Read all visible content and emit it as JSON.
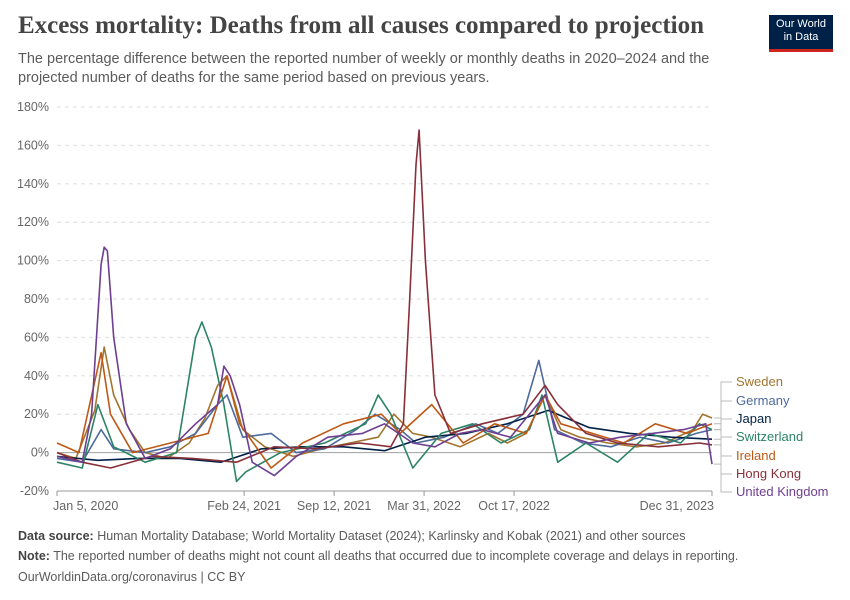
{
  "header": {
    "title": "Excess mortality: Deaths from all causes compared to projection",
    "subtitle": "The percentage difference between the reported number of weekly or monthly deaths in 2020–2024 and the projected number of deaths for the same period based on previous years.",
    "logo_line1": "Our World",
    "logo_line2": "in Data"
  },
  "footer": {
    "source_label": "Data source:",
    "source_text": " Human Mortality Database; World Mortality Dataset (2024); Karlinsky and Kobak (2021) and other sources",
    "note_label": "Note:",
    "note_text": " The reported number of deaths might not count all deaths that occurred due to incomplete coverage and delays in reporting.",
    "credit": "OurWorldinData.org/coronavirus | CC BY"
  },
  "chart_data": {
    "type": "line",
    "title": "Excess mortality: Deaths from all causes compared to projection",
    "x_type": "date",
    "xlim": [
      "2020-01-05",
      "2023-12-31"
    ],
    "x_ticks": [
      "2020-01-05",
      "2021-02-24",
      "2021-09-12",
      "2022-03-31",
      "2022-10-17",
      "2023-12-31"
    ],
    "x_tick_labels": [
      "Jan 5, 2020",
      "Feb 24, 2021",
      "Sep 12, 2021",
      "Mar 31, 2022",
      "Oct 17, 2022",
      "Dec 31, 2023"
    ],
    "ylim": [
      -20,
      180
    ],
    "y_ticks": [
      -20,
      0,
      20,
      40,
      60,
      80,
      100,
      120,
      140,
      160,
      180
    ],
    "y_tick_labels": [
      "-20%",
      "0%",
      "20%",
      "40%",
      "60%",
      "80%",
      "100%",
      "120%",
      "140%",
      "160%",
      "180%"
    ],
    "grid": "horizontal dashed",
    "legend_position": "right",
    "series": [
      {
        "name": "Sweden",
        "color": "#a2742e",
        "points": [
          [
            "2020-01-05",
            0
          ],
          [
            "2020-02-16",
            -3
          ],
          [
            "2020-03-29",
            22
          ],
          [
            "2020-04-19",
            55
          ],
          [
            "2020-05-10",
            30
          ],
          [
            "2020-06-14",
            12
          ],
          [
            "2020-07-19",
            0
          ],
          [
            "2020-09-06",
            -3
          ],
          [
            "2020-10-25",
            5
          ],
          [
            "2020-11-29",
            18
          ],
          [
            "2020-12-27",
            35
          ],
          [
            "2021-01-17",
            40
          ],
          [
            "2021-02-21",
            12
          ],
          [
            "2021-04-11",
            3
          ],
          [
            "2021-06-13",
            -2
          ],
          [
            "2021-08-15",
            2
          ],
          [
            "2021-10-17",
            5
          ],
          [
            "2021-12-19",
            8
          ],
          [
            "2022-01-23",
            20
          ],
          [
            "2022-03-06",
            10
          ],
          [
            "2022-04-17",
            8
          ],
          [
            "2022-06-19",
            3
          ],
          [
            "2022-08-21",
            10
          ],
          [
            "2022-10-02",
            5
          ],
          [
            "2022-11-13",
            10
          ],
          [
            "2022-12-25",
            30
          ],
          [
            "2023-01-29",
            12
          ],
          [
            "2023-03-12",
            8
          ],
          [
            "2023-05-14",
            5
          ],
          [
            "2023-07-16",
            3
          ],
          [
            "2023-09-17",
            5
          ],
          [
            "2023-11-19",
            12
          ],
          [
            "2023-12-10",
            20
          ],
          [
            "2023-12-31",
            18
          ]
        ]
      },
      {
        "name": "Germany",
        "color": "#4c6a9c",
        "points": [
          [
            "2020-01-05",
            -3
          ],
          [
            "2020-03-01",
            -5
          ],
          [
            "2020-04-12",
            12
          ],
          [
            "2020-05-10",
            2
          ],
          [
            "2020-07-19",
            0
          ],
          [
            "2020-09-13",
            3
          ],
          [
            "2020-11-08",
            10
          ],
          [
            "2020-12-27",
            25
          ],
          [
            "2021-01-17",
            30
          ],
          [
            "2021-02-21",
            8
          ],
          [
            "2021-04-25",
            10
          ],
          [
            "2021-06-20",
            0
          ],
          [
            "2021-08-22",
            2
          ],
          [
            "2021-10-31",
            12
          ],
          [
            "2021-12-12",
            20
          ],
          [
            "2022-02-06",
            12
          ],
          [
            "2022-03-13",
            5
          ],
          [
            "2022-05-15",
            8
          ],
          [
            "2022-07-24",
            15
          ],
          [
            "2022-09-11",
            10
          ],
          [
            "2022-11-06",
            20
          ],
          [
            "2022-12-11",
            48
          ],
          [
            "2023-01-15",
            12
          ],
          [
            "2023-03-19",
            5
          ],
          [
            "2023-05-21",
            3
          ],
          [
            "2023-07-23",
            8
          ],
          [
            "2023-09-24",
            5
          ],
          [
            "2023-11-26",
            10
          ],
          [
            "2023-12-31",
            12
          ]
        ]
      },
      {
        "name": "Japan",
        "color": "#002147",
        "points": [
          [
            "2020-01-05",
            -2
          ],
          [
            "2020-04-05",
            -4
          ],
          [
            "2020-07-05",
            -3
          ],
          [
            "2020-10-04",
            -3
          ],
          [
            "2021-01-03",
            -5
          ],
          [
            "2021-04-04",
            2
          ],
          [
            "2021-07-04",
            3
          ],
          [
            "2021-10-03",
            3
          ],
          [
            "2022-01-02",
            1
          ],
          [
            "2022-04-03",
            8
          ],
          [
            "2022-07-03",
            10
          ],
          [
            "2022-10-02",
            15
          ],
          [
            "2023-01-01",
            22
          ],
          [
            "2023-04-02",
            13
          ],
          [
            "2023-07-02",
            10
          ],
          [
            "2023-10-01",
            8
          ],
          [
            "2023-12-31",
            7
          ]
        ]
      },
      {
        "name": "Switzerland",
        "color": "#2c8465",
        "points": [
          [
            "2020-01-05",
            -5
          ],
          [
            "2020-03-01",
            -8
          ],
          [
            "2020-04-05",
            25
          ],
          [
            "2020-05-10",
            3
          ],
          [
            "2020-07-19",
            -5
          ],
          [
            "2020-09-27",
            0
          ],
          [
            "2020-11-08",
            60
          ],
          [
            "2020-11-22",
            68
          ],
          [
            "2020-12-13",
            55
          ],
          [
            "2021-01-10",
            25
          ],
          [
            "2021-02-07",
            -15
          ],
          [
            "2021-02-28",
            -10
          ],
          [
            "2021-05-16",
            0
          ],
          [
            "2021-08-22",
            5
          ],
          [
            "2021-11-21",
            15
          ],
          [
            "2021-12-19",
            30
          ],
          [
            "2022-01-16",
            20
          ],
          [
            "2022-03-06",
            -8
          ],
          [
            "2022-05-08",
            10
          ],
          [
            "2022-07-17",
            15
          ],
          [
            "2022-09-18",
            5
          ],
          [
            "2022-11-20",
            12
          ],
          [
            "2022-12-18",
            30
          ],
          [
            "2023-01-22",
            -5
          ],
          [
            "2023-03-26",
            5
          ],
          [
            "2023-06-04",
            -5
          ],
          [
            "2023-08-13",
            10
          ],
          [
            "2023-10-22",
            5
          ],
          [
            "2023-12-03",
            15
          ],
          [
            "2023-12-31",
            12
          ]
        ]
      },
      {
        "name": "Ireland",
        "color": "#be5915",
        "points": [
          [
            "2020-01-05",
            5
          ],
          [
            "2020-02-23",
            0
          ],
          [
            "2020-04-12",
            52
          ],
          [
            "2020-05-03",
            20
          ],
          [
            "2020-06-21",
            0
          ],
          [
            "2020-09-13",
            5
          ],
          [
            "2020-12-06",
            10
          ],
          [
            "2021-01-17",
            40
          ],
          [
            "2021-02-14",
            15
          ],
          [
            "2021-04-25",
            -8
          ],
          [
            "2021-07-04",
            5
          ],
          [
            "2021-10-03",
            15
          ],
          [
            "2021-12-26",
            20
          ],
          [
            "2022-02-06",
            10
          ],
          [
            "2022-04-17",
            25
          ],
          [
            "2022-06-26",
            5
          ],
          [
            "2022-09-04",
            15
          ],
          [
            "2022-11-13",
            10
          ],
          [
            "2022-12-25",
            30
          ],
          [
            "2023-01-29",
            15
          ],
          [
            "2023-04-09",
            10
          ],
          [
            "2023-06-18",
            5
          ],
          [
            "2023-08-27",
            15
          ],
          [
            "2023-11-05",
            10
          ],
          [
            "2023-12-31",
            15
          ]
        ]
      },
      {
        "name": "Hong Kong",
        "color": "#883039",
        "points": [
          [
            "2020-01-05",
            0
          ],
          [
            "2020-03-01",
            -5
          ],
          [
            "2020-05-03",
            -8
          ],
          [
            "2020-08-02",
            -2
          ],
          [
            "2020-11-01",
            -3
          ],
          [
            "2021-02-07",
            -5
          ],
          [
            "2021-05-02",
            3
          ],
          [
            "2021-08-01",
            2
          ],
          [
            "2021-11-07",
            5
          ],
          [
            "2022-01-16",
            3
          ],
          [
            "2022-02-13",
            15
          ],
          [
            "2022-02-27",
            80
          ],
          [
            "2022-03-13",
            150
          ],
          [
            "2022-03-20",
            168
          ],
          [
            "2022-04-03",
            100
          ],
          [
            "2022-04-24",
            30
          ],
          [
            "2022-05-29",
            10
          ],
          [
            "2022-08-07",
            15
          ],
          [
            "2022-11-06",
            20
          ],
          [
            "2022-12-25",
            35
          ],
          [
            "2023-01-22",
            25
          ],
          [
            "2023-03-26",
            10
          ],
          [
            "2023-06-04",
            5
          ],
          [
            "2023-09-03",
            3
          ],
          [
            "2023-12-03",
            5
          ],
          [
            "2023-12-31",
            4
          ]
        ]
      },
      {
        "name": "United Kingdom",
        "color": "#6d3e91",
        "points": [
          [
            "2020-01-05",
            -2
          ],
          [
            "2020-03-01",
            -5
          ],
          [
            "2020-03-22",
            20
          ],
          [
            "2020-04-12",
            98
          ],
          [
            "2020-04-19",
            107
          ],
          [
            "2020-04-26",
            105
          ],
          [
            "2020-05-10",
            60
          ],
          [
            "2020-06-07",
            15
          ],
          [
            "2020-07-19",
            -3
          ],
          [
            "2020-09-13",
            2
          ],
          [
            "2020-11-08",
            15
          ],
          [
            "2020-12-27",
            25
          ],
          [
            "2021-01-10",
            45
          ],
          [
            "2021-01-24",
            40
          ],
          [
            "2021-02-14",
            25
          ],
          [
            "2021-03-14",
            -5
          ],
          [
            "2021-05-02",
            -12
          ],
          [
            "2021-06-20",
            -2
          ],
          [
            "2021-08-29",
            8
          ],
          [
            "2021-11-14",
            10
          ],
          [
            "2022-01-02",
            15
          ],
          [
            "2022-03-06",
            5
          ],
          [
            "2022-04-24",
            3
          ],
          [
            "2022-06-19",
            10
          ],
          [
            "2022-08-07",
            12
          ],
          [
            "2022-10-09",
            8
          ],
          [
            "2022-12-25",
            30
          ],
          [
            "2023-01-22",
            10
          ],
          [
            "2023-04-02",
            5
          ],
          [
            "2023-06-11",
            8
          ],
          [
            "2023-08-20",
            10
          ],
          [
            "2023-10-29",
            12
          ],
          [
            "2023-12-17",
            15
          ],
          [
            "2023-12-31",
            -6
          ]
        ]
      }
    ]
  }
}
